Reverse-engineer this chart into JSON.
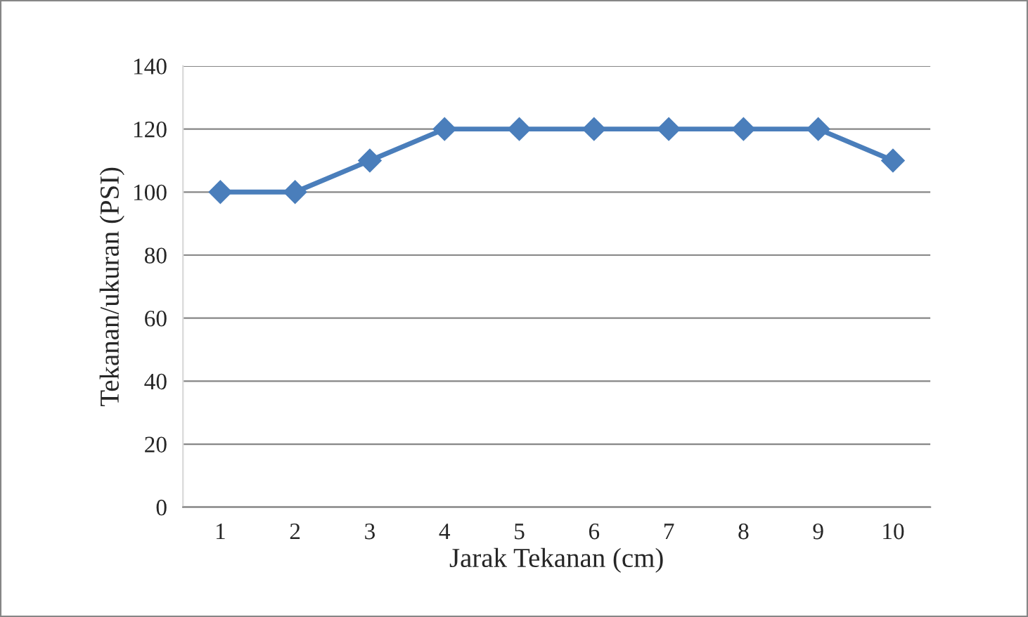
{
  "chart_data": {
    "type": "line",
    "xlabel": "Jarak Tekanan (cm)",
    "ylabel": "Tekanan/ukuran (PSI)",
    "categories": [
      "1",
      "2",
      "3",
      "4",
      "5",
      "6",
      "7",
      "8",
      "9",
      "10"
    ],
    "series": [
      {
        "color": "#4a7ebb",
        "values": [
          100,
          100,
          110,
          120,
          120,
          120,
          120,
          120,
          120,
          110
        ]
      }
    ],
    "ylim": [
      0,
      140
    ],
    "yticks": [
      0,
      20,
      40,
      60,
      80,
      100,
      120,
      140
    ],
    "grid": "y",
    "marker": "diamond",
    "line_style": "solid"
  }
}
